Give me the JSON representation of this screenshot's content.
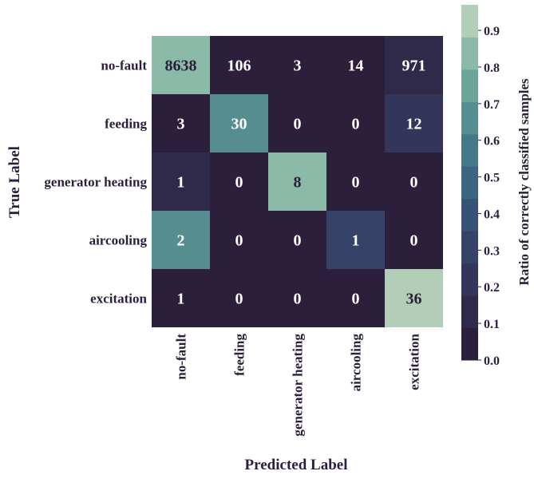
{
  "chart_data": {
    "type": "heatmap",
    "xlabel": "Predicted Label",
    "ylabel": "True Label",
    "x_categories": [
      "no-fault",
      "feeding",
      "generator heating",
      "aircooling",
      "excitation"
    ],
    "y_categories": [
      "no-fault",
      "feeding",
      "generator heating",
      "aircooling",
      "excitation"
    ],
    "values": [
      [
        8638,
        106,
        3,
        14,
        971
      ],
      [
        3,
        30,
        0,
        0,
        12
      ],
      [
        1,
        0,
        8,
        0,
        0
      ],
      [
        2,
        0,
        0,
        1,
        0
      ],
      [
        1,
        0,
        0,
        0,
        36
      ]
    ],
    "colorbar": {
      "label": "Ratio of correctly classified samples",
      "ticks": [
        "0.0",
        "0.1",
        "0.2",
        "0.3",
        "0.4",
        "0.5",
        "0.6",
        "0.7",
        "0.8",
        "0.9"
      ],
      "tick_values": [
        0.0,
        0.1,
        0.2,
        0.3,
        0.4,
        0.5,
        0.6,
        0.7,
        0.8,
        0.9
      ],
      "range": [
        0.0,
        1.0
      ],
      "levels": 11
    },
    "palette": [
      "#2b1f3b",
      "#302a4a",
      "#33365a",
      "#354369",
      "#365377",
      "#3b6581",
      "#457888",
      "#568d90",
      "#6ca39a",
      "#8bbaa8",
      "#b2ceb8",
      "#d7e2c5"
    ],
    "annotation_light_text_color": "#ffffff",
    "annotation_dark_text_color": "#2b1f3b"
  }
}
